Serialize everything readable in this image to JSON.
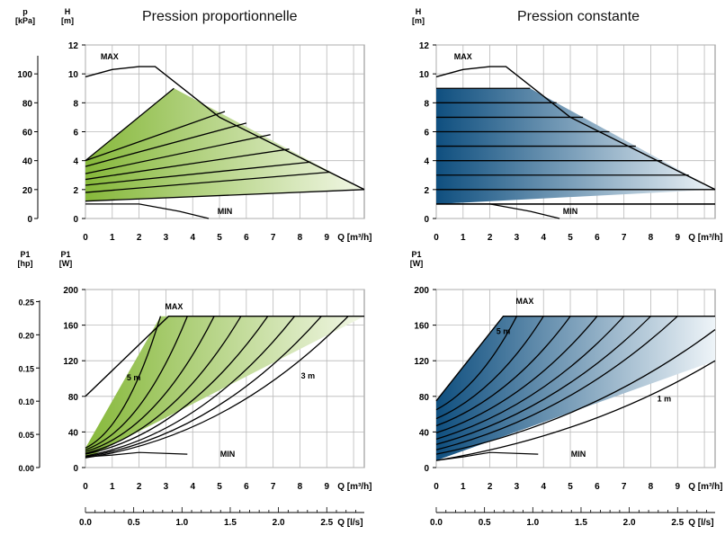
{
  "titles": {
    "left": "Pression proportionnelle",
    "right": "Pression constante"
  },
  "colors": {
    "green_dark": "#86b83a",
    "green_light": "#f2f7e6",
    "blue_dark": "#0f4f7f",
    "blue_light": "#eef4f8",
    "grid": "#b8b8b8",
    "curve": "#000000"
  },
  "axes": {
    "h_label": "H\n[m]",
    "p_label": "p\n[kPa]",
    "p1w_label": "P1\n[W]",
    "p1hp_label": "P1\n[hp]",
    "q_label": "Q [m³/h]",
    "q2_label": "Q [l/s]",
    "h_ticks": [
      0,
      2,
      4,
      6,
      8,
      10,
      12
    ],
    "p_ticks": [
      0,
      20,
      40,
      60,
      80,
      100
    ],
    "p1w_ticks": [
      0,
      40,
      80,
      120,
      160,
      200
    ],
    "p1hp_ticks": [
      "0.00",
      "0.05",
      "0.10",
      "0.15",
      "0.20",
      "0.25"
    ],
    "q_ticks": [
      0,
      1,
      2,
      3,
      4,
      5,
      6,
      7,
      8,
      9
    ],
    "q2_ticks": [
      "0.0",
      "0.5",
      "1.0",
      "1.5",
      "2.0",
      "2.5"
    ]
  },
  "chart_data": [
    {
      "type": "line",
      "name": "Pression proportionnelle H-Q",
      "title": "Pression proportionnelle",
      "xlabel": "Q [m³/h]",
      "ylabel": "H [m]",
      "xlim": [
        0,
        10.4
      ],
      "ylim": [
        0,
        12
      ],
      "labels": {
        "max": "MAX",
        "min": "MIN"
      },
      "max_curve": {
        "x": [
          0,
          1,
          2,
          2.6,
          5.0,
          10.4
        ],
        "y": [
          9.8,
          10.3,
          10.5,
          10.5,
          7.0,
          2.0
        ]
      },
      "min_curve": {
        "x": [
          0,
          2,
          3.5,
          4.6
        ],
        "y": [
          1.0,
          1.0,
          0.5,
          0
        ]
      },
      "region": {
        "x": [
          0,
          3.3,
          10.4,
          0
        ],
        "y": [
          4.0,
          9.0,
          2.0,
          1.2
        ]
      },
      "curves": [
        {
          "x0": 0,
          "y0": 1.2,
          "x1": 10.4,
          "y1": 2.0
        },
        {
          "x0": 0,
          "y0": 1.8,
          "x1": 9.1,
          "y1": 3.2
        },
        {
          "x0": 0,
          "y0": 2.3,
          "x1": 8.4,
          "y1": 3.9
        },
        {
          "x0": 0,
          "y0": 2.7,
          "x1": 7.6,
          "y1": 4.8
        },
        {
          "x0": 0,
          "y0": 3.1,
          "x1": 6.9,
          "y1": 5.8
        },
        {
          "x0": 0,
          "y0": 3.6,
          "x1": 6.0,
          "y1": 6.6
        },
        {
          "x0": 0,
          "y0": 4.0,
          "x1": 5.2,
          "y1": 7.4
        },
        {
          "x0": 0,
          "y0": 4.0,
          "x1": 3.3,
          "y1": 9.0
        }
      ]
    },
    {
      "type": "line",
      "name": "Pression constante H-Q",
      "title": "Pression constante",
      "xlabel": "Q [m³/h]",
      "ylabel": "H [m]",
      "xlim": [
        0,
        10.4
      ],
      "ylim": [
        0,
        12
      ],
      "labels": {
        "max": "MAX",
        "min": "MIN"
      },
      "max_curve": {
        "x": [
          0,
          1,
          2,
          2.6,
          5.0,
          10.4
        ],
        "y": [
          9.8,
          10.3,
          10.5,
          10.5,
          7.0,
          2.0
        ]
      },
      "min_curve": {
        "x": [
          0,
          2,
          3.5,
          4.6
        ],
        "y": [
          1.0,
          1.0,
          0.5,
          0
        ]
      },
      "region": {
        "x": [
          0,
          3.5,
          10.4,
          0
        ],
        "y": [
          9.0,
          9.0,
          2.0,
          1.0
        ]
      },
      "levels": [
        1.0,
        2.0,
        3.0,
        4.0,
        5.0,
        6.0,
        7.0,
        8.0,
        9.0
      ]
    },
    {
      "type": "line",
      "name": "Pression proportionnelle P1-Q",
      "xlabel": "Q [m³/h]",
      "ylabel": "P1 [W]",
      "xlim": [
        0,
        10.4
      ],
      "ylim": [
        0,
        200
      ],
      "labels": {
        "max": "MAX",
        "min": "MIN",
        "upper_band": "5 m",
        "lower_band": "3 m"
      },
      "max_line": {
        "x": [
          0,
          3.1,
          10.4
        ],
        "y": [
          80,
          170,
          170
        ]
      },
      "min_curve": {
        "x": [
          0,
          1,
          2,
          3.8
        ],
        "y": [
          12,
          14,
          17,
          15
        ]
      },
      "region": {
        "x": [
          0,
          2.8,
          10.4,
          0
        ],
        "y": [
          22,
          170,
          170,
          10
        ]
      },
      "curves": [
        {
          "x0": 0,
          "y0": 22,
          "x1": 2.8,
          "y1": 170
        },
        {
          "x0": 0,
          "y0": 20,
          "x1": 3.8,
          "y1": 170
        },
        {
          "x0": 0,
          "y0": 18,
          "x1": 4.8,
          "y1": 170
        },
        {
          "x0": 0,
          "y0": 16,
          "x1": 5.8,
          "y1": 170
        },
        {
          "x0": 0,
          "y0": 15,
          "x1": 6.8,
          "y1": 170
        },
        {
          "x0": 0,
          "y0": 13,
          "x1": 7.8,
          "y1": 170
        },
        {
          "x0": 0,
          "y0": 12,
          "x1": 8.8,
          "y1": 170
        },
        {
          "x0": 0,
          "y0": 11,
          "x1": 9.8,
          "y1": 170
        }
      ]
    },
    {
      "type": "line",
      "name": "Pression constante P1-Q",
      "xlabel": "Q [m³/h]",
      "ylabel": "P1 [W]",
      "xlim": [
        0,
        10.4
      ],
      "ylim": [
        0,
        200
      ],
      "labels": {
        "max": "MAX",
        "min": "MIN",
        "upper_band": "5 m",
        "lower_band": "1 m"
      },
      "max_line": {
        "x": [
          0,
          2.5,
          10.4
        ],
        "y": [
          75,
          170,
          170
        ]
      },
      "min_curve": {
        "x": [
          0,
          1,
          2,
          3.8
        ],
        "y": [
          8,
          12,
          17,
          15
        ]
      },
      "region": {
        "x": [
          0,
          2.5,
          10.4,
          10.4,
          0
        ],
        "y": [
          75,
          170,
          170,
          120,
          8
        ]
      },
      "curves": [
        {
          "x0": 0,
          "y0": 65,
          "x1": 3.0,
          "y1": 170
        },
        {
          "x0": 0,
          "y0": 55,
          "x1": 4.0,
          "y1": 170
        },
        {
          "x0": 0,
          "y0": 47,
          "x1": 5.0,
          "y1": 170
        },
        {
          "x0": 0,
          "y0": 39,
          "x1": 6.0,
          "y1": 170
        },
        {
          "x0": 0,
          "y0": 32,
          "x1": 7.0,
          "y1": 170
        },
        {
          "x0": 0,
          "y0": 26,
          "x1": 8.0,
          "y1": 170
        },
        {
          "x0": 0,
          "y0": 20,
          "x1": 9.0,
          "y1": 170
        },
        {
          "x0": 0,
          "y0": 15,
          "x1": 10.4,
          "y1": 155
        },
        {
          "x0": 0,
          "y0": 8,
          "x1": 10.4,
          "y1": 120
        }
      ]
    }
  ]
}
